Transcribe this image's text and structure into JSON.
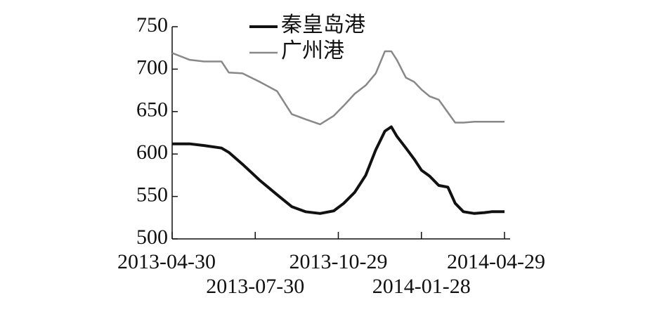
{
  "chart_data": {
    "type": "line",
    "x": [
      "2013-04-30",
      "2013-05-19",
      "2013-06-04",
      "2013-06-23",
      "2013-07-01",
      "2013-07-16",
      "2013-08-04",
      "2013-08-23",
      "2013-09-08",
      "2013-09-23",
      "2013-10-09",
      "2013-10-24",
      "2013-11-04",
      "2013-11-16",
      "2013-11-28",
      "2013-12-09",
      "2013-12-19",
      "2013-12-26",
      "2014-01-01",
      "2014-01-11",
      "2014-01-20",
      "2014-01-28",
      "2014-02-06",
      "2014-02-16",
      "2014-02-26",
      "2014-03-06",
      "2014-03-15",
      "2014-03-27",
      "2014-04-07",
      "2014-04-15",
      "2014-04-29"
    ],
    "series": [
      {
        "name": "秦皇岛港",
        "color": "#111111",
        "values": [
          612,
          612,
          610,
          607,
          602,
          588,
          569,
          552,
          538,
          532,
          530,
          533,
          542,
          555,
          575,
          605,
          627,
          632,
          621,
          607,
          594,
          581,
          574,
          563,
          561,
          542,
          532,
          530,
          531,
          532,
          532
        ]
      },
      {
        "name": "广州港",
        "color": "#888888",
        "values": [
          719,
          711,
          709,
          709,
          696,
          695,
          685,
          674,
          647,
          641,
          635,
          645,
          657,
          671,
          681,
          695,
          721,
          721,
          711,
          690,
          685,
          676,
          668,
          664,
          649,
          637,
          637,
          638,
          638,
          638,
          638
        ]
      }
    ],
    "xlim": [
      "2013-04-30",
      "2014-04-29"
    ],
    "xticks": [
      "2013-04-30",
      "2013-07-30",
      "2013-10-29",
      "2014-01-28",
      "2014-04-29"
    ],
    "ylim": [
      500,
      750
    ],
    "yticks": [
      500,
      550,
      600,
      650,
      700,
      750
    ]
  }
}
